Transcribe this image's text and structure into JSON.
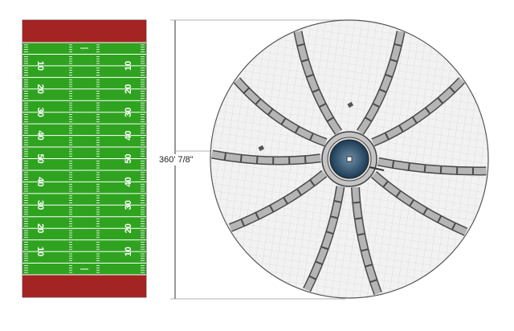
{
  "field": {
    "yard_numbers": [
      "10",
      "20",
      "30",
      "40",
      "50",
      "40",
      "30",
      "20",
      "10"
    ]
  },
  "dimension": {
    "label": "360' 7/8\""
  }
}
